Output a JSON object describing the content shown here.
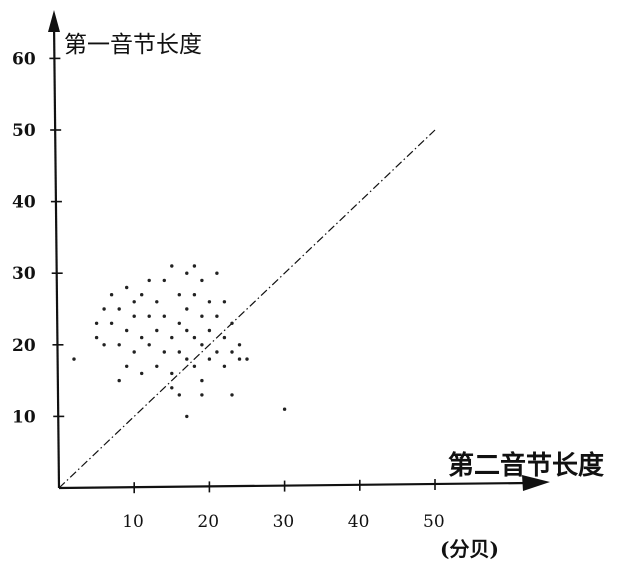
{
  "chart_data": {
    "type": "scatter",
    "ylabel": "第一音节长度",
    "xlabel": "第二音节长度",
    "xunit": "(分贝)",
    "x_ticks": [
      10,
      20,
      30,
      40,
      50
    ],
    "y_ticks": [
      10,
      20,
      30,
      40,
      50,
      60
    ],
    "y_tick_labels": [
      "10",
      "20",
      "30",
      "40",
      "50",
      "60"
    ],
    "xlim": [
      0,
      55
    ],
    "ylim": [
      0,
      62
    ],
    "grid": false,
    "reference_line": {
      "from": [
        0,
        0
      ],
      "to": [
        50,
        50
      ],
      "style": "dash-dot"
    },
    "points": [
      [
        2,
        18
      ],
      [
        5,
        23
      ],
      [
        5,
        21
      ],
      [
        6,
        25
      ],
      [
        6,
        20
      ],
      [
        7,
        27
      ],
      [
        7,
        23
      ],
      [
        8,
        15
      ],
      [
        8,
        20
      ],
      [
        8,
        25
      ],
      [
        9,
        28
      ],
      [
        9,
        22
      ],
      [
        9,
        17
      ],
      [
        10,
        24
      ],
      [
        10,
        19
      ],
      [
        10,
        26
      ],
      [
        11,
        27
      ],
      [
        11,
        21
      ],
      [
        11,
        16
      ],
      [
        12,
        24
      ],
      [
        12,
        29
      ],
      [
        12,
        20
      ],
      [
        13,
        17
      ],
      [
        13,
        26
      ],
      [
        13,
        22
      ],
      [
        14,
        19
      ],
      [
        14,
        24
      ],
      [
        14,
        29
      ],
      [
        15,
        31
      ],
      [
        15,
        21
      ],
      [
        15,
        16
      ],
      [
        15,
        14
      ],
      [
        16,
        27
      ],
      [
        16,
        23
      ],
      [
        16,
        19
      ],
      [
        17,
        30
      ],
      [
        17,
        25
      ],
      [
        17,
        22
      ],
      [
        17,
        18
      ],
      [
        18,
        31
      ],
      [
        18,
        27
      ],
      [
        18,
        21
      ],
      [
        18,
        17
      ],
      [
        19,
        29
      ],
      [
        19,
        24
      ],
      [
        19,
        20
      ],
      [
        19,
        15
      ],
      [
        20,
        26
      ],
      [
        20,
        22
      ],
      [
        20,
        18
      ],
      [
        21,
        30
      ],
      [
        21,
        24
      ],
      [
        21,
        19
      ],
      [
        22,
        26
      ],
      [
        22,
        21
      ],
      [
        22,
        17
      ],
      [
        23,
        23
      ],
      [
        23,
        19
      ],
      [
        24,
        20
      ],
      [
        24,
        18
      ],
      [
        25,
        18
      ],
      [
        23,
        13
      ],
      [
        17,
        10
      ],
      [
        30,
        11
      ],
      [
        16,
        13
      ],
      [
        19,
        13
      ]
    ]
  }
}
